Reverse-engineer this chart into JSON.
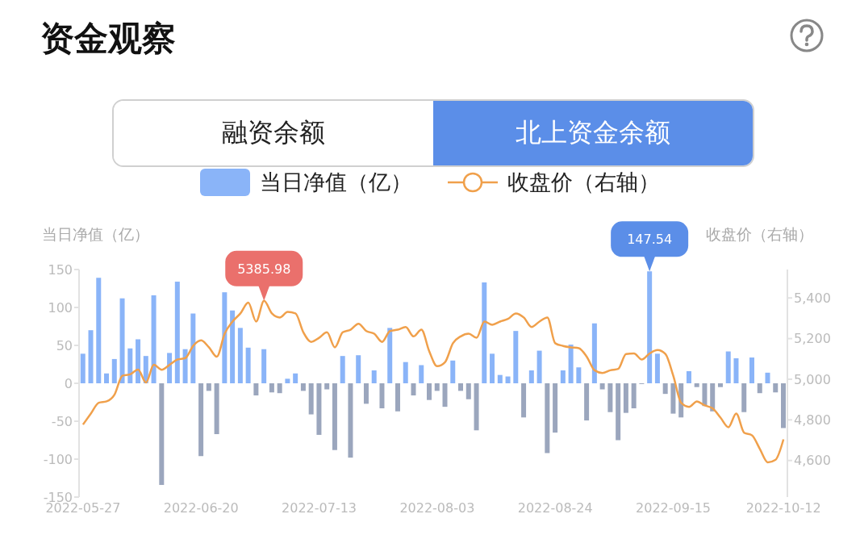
{
  "chart_data": {
    "type": "bar",
    "title": "资金观察",
    "annotations": [
      "融资余额",
      "北上资金余额"
    ],
    "ylabel": "当日净值（亿）",
    "y2label": "收盘价（右轴）",
    "legend": "top",
    "categories": [
      "2022-05-27",
      null,
      null,
      null,
      null,
      null,
      null,
      null,
      null,
      null,
      null,
      null,
      null,
      null,
      null,
      "2022-06-20",
      null,
      null,
      null,
      null,
      null,
      null,
      null,
      null,
      null,
      null,
      null,
      null,
      null,
      null,
      "2022-07-13",
      null,
      null,
      null,
      null,
      null,
      null,
      null,
      null,
      null,
      null,
      null,
      null,
      null,
      null,
      "2022-08-03",
      null,
      null,
      null,
      null,
      null,
      null,
      null,
      null,
      null,
      null,
      null,
      null,
      null,
      null,
      "2022-08-24",
      null,
      null,
      null,
      null,
      null,
      null,
      null,
      null,
      null,
      null,
      null,
      null,
      null,
      null,
      "2022-09-15",
      null,
      null,
      null,
      null,
      null,
      null,
      null,
      null,
      null,
      null,
      null,
      null,
      null,
      "2022-10-12"
    ],
    "ylim": [
      -150,
      150
    ],
    "yticks": [
      -150,
      -100,
      -50,
      0,
      50,
      100,
      150
    ],
    "y2lim": [
      4420,
      5540
    ],
    "y2ticks": [
      {
        "value": 4600,
        "label": "4,600"
      },
      {
        "value": 4800,
        "label": "4,800"
      },
      {
        "value": 5000,
        "label": "5,000"
      },
      {
        "value": 5200,
        "label": "5,200"
      },
      {
        "value": 5400,
        "label": "5,400"
      }
    ],
    "grid": false,
    "marker": "none",
    "series": [
      {
        "name": "当日净值（亿）",
        "color": "#8ab4f8",
        "values": [
          39,
          70,
          139,
          13,
          32,
          112,
          46,
          58,
          36,
          116,
          -134,
          40,
          134,
          45,
          92,
          -96,
          -10,
          -67,
          120,
          96,
          73,
          47,
          -16,
          45,
          -12,
          -13,
          6,
          13,
          -10,
          -41,
          -68,
          -8,
          -88,
          36,
          -98,
          37,
          -27,
          17,
          -33,
          73,
          -37,
          28,
          -16,
          24,
          -22,
          -10,
          -31,
          30,
          -10,
          -21,
          -62,
          133,
          39,
          11,
          9,
          69,
          -45,
          17,
          43,
          -92,
          -65,
          17,
          51,
          21,
          -49,
          79,
          -8,
          -38,
          -75,
          -39,
          -33,
          -1,
          147.54,
          39,
          -14,
          -40,
          -45,
          16,
          -5,
          -30,
          -37,
          -5,
          42,
          33,
          -38,
          34,
          -13,
          14,
          -12,
          -59
        ],
        "colors": [
          "#8ab4f8",
          "#8ab4f8",
          "#8ab4f8",
          "#8ab4f8",
          "#8ab4f8",
          "#8ab4f8",
          "#8ab4f8",
          "#8ab4f8",
          "#8ab4f8",
          "#8ab4f8",
          "#9ba6bd",
          "#8ab4f8",
          "#8ab4f8",
          "#8ab4f8",
          "#8ab4f8",
          "#9ba6bd",
          "#9ba6bd",
          "#9ba6bd",
          "#8ab4f8",
          "#8ab4f8",
          "#8ab4f8",
          "#8ab4f8",
          "#9ba6bd",
          "#8ab4f8",
          "#9ba6bd",
          "#9ba6bd",
          "#8ab4f8",
          "#8ab4f8",
          "#9ba6bd",
          "#9ba6bd",
          "#9ba6bd",
          "#9ba6bd",
          "#9ba6bd",
          "#8ab4f8",
          "#9ba6bd",
          "#8ab4f8",
          "#9ba6bd",
          "#8ab4f8",
          "#9ba6bd",
          "#8ab4f8",
          "#9ba6bd",
          "#8ab4f8",
          "#9ba6bd",
          "#8ab4f8",
          "#9ba6bd",
          "#9ba6bd",
          "#9ba6bd",
          "#8ab4f8",
          "#9ba6bd",
          "#9ba6bd",
          "#9ba6bd",
          "#8ab4f8",
          "#8ab4f8",
          "#8ab4f8",
          "#8ab4f8",
          "#8ab4f8",
          "#9ba6bd",
          "#8ab4f8",
          "#8ab4f8",
          "#9ba6bd",
          "#9ba6bd",
          "#8ab4f8",
          "#8ab4f8",
          "#8ab4f8",
          "#9ba6bd",
          "#8ab4f8",
          "#9ba6bd",
          "#9ba6bd",
          "#9ba6bd",
          "#9ba6bd",
          "#9ba6bd",
          "#9ba6bd",
          "#8ab4f8",
          "#8ab4f8",
          "#9ba6bd",
          "#9ba6bd",
          "#9ba6bd",
          "#8ab4f8",
          "#9ba6bd",
          "#9ba6bd",
          "#9ba6bd",
          "#9ba6bd",
          "#8ab4f8",
          "#8ab4f8",
          "#9ba6bd",
          "#8ab4f8",
          "#9ba6bd",
          "#8ab4f8",
          "#9ba6bd",
          "#9ba6bd"
        ],
        "value_labels": [
          null,
          null,
          null,
          null,
          null,
          null,
          null,
          null,
          null,
          null,
          null,
          null,
          null,
          null,
          null,
          null,
          null,
          null,
          null,
          null,
          null,
          null,
          null,
          null,
          null,
          null,
          null,
          null,
          null,
          null,
          null,
          null,
          null,
          null,
          null,
          null,
          null,
          null,
          null,
          null,
          null,
          null,
          null,
          null,
          null,
          null,
          null,
          null,
          null,
          null,
          null,
          null,
          null,
          null,
          null,
          null,
          null,
          null,
          null,
          null,
          null,
          null,
          null,
          null,
          null,
          null,
          null,
          null,
          null,
          null,
          null,
          null,
          "147.54",
          null,
          null,
          null,
          null,
          null,
          null,
          null,
          null,
          null,
          null,
          null,
          null,
          null,
          null,
          null,
          null,
          null
        ]
      },
      {
        "name": "收盘价（右轴）",
        "type": "line",
        "color": "#f0a04b",
        "axis": "y2",
        "values": [
          4777,
          4831,
          4884,
          4891,
          4924,
          5017,
          5024,
          5048,
          4984,
          5071,
          5047,
          5071,
          5097,
          5104,
          5164,
          5191,
          5157,
          5111,
          5224,
          5284,
          5324,
          5377,
          5284,
          5385.98,
          5324,
          5304,
          5331,
          5324,
          5231,
          5184,
          5204,
          5231,
          5157,
          5231,
          5244,
          5273,
          5237,
          5224,
          5184,
          5237,
          5244,
          5257,
          5211,
          5244,
          5137,
          5064,
          5084,
          5177,
          5211,
          5224,
          5204,
          5284,
          5268,
          5284,
          5297,
          5324,
          5304,
          5257,
          5284,
          5304,
          5177,
          5164,
          5157,
          5153,
          5111,
          5044,
          5031,
          5044,
          5051,
          5124,
          5127,
          5097,
          5127,
          5144,
          5124,
          5017,
          4884,
          4864,
          4891,
          4871,
          4857,
          4811,
          4764,
          4831,
          4737,
          4724,
          4657,
          4591,
          4604,
          4704
        ],
        "value_labels": [
          null,
          null,
          null,
          null,
          null,
          null,
          null,
          null,
          null,
          null,
          null,
          null,
          null,
          null,
          null,
          null,
          null,
          null,
          null,
          null,
          null,
          null,
          null,
          "5385.98",
          null,
          null,
          null,
          null,
          null,
          null,
          null,
          null,
          null,
          null,
          null,
          null,
          null,
          null,
          null,
          null,
          null,
          null,
          null,
          null,
          null,
          null,
          null,
          null,
          null,
          null,
          null,
          null,
          null,
          null,
          null,
          null,
          null,
          null,
          null,
          null,
          null,
          null,
          null,
          null,
          null,
          null,
          null,
          null,
          null,
          null,
          null,
          null,
          null,
          null,
          null,
          null,
          null,
          null,
          null,
          null,
          null,
          null,
          null,
          null,
          null,
          null,
          null,
          null,
          null,
          null
        ]
      }
    ]
  }
}
